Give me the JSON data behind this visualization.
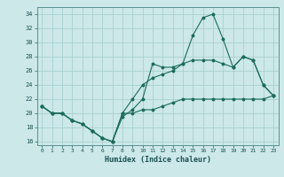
{
  "xlabel": "Humidex (Indice chaleur)",
  "ylabel": "",
  "bg_color": "#cce8e8",
  "grid_color": "#aad0d0",
  "line_color": "#1a6b5a",
  "xlim": [
    -0.5,
    23.5
  ],
  "ylim": [
    15.5,
    35
  ],
  "xticks": [
    0,
    1,
    2,
    3,
    4,
    5,
    6,
    7,
    8,
    9,
    10,
    11,
    12,
    13,
    14,
    15,
    16,
    17,
    18,
    19,
    20,
    21,
    22,
    23
  ],
  "yticks": [
    16,
    18,
    20,
    22,
    24,
    26,
    28,
    30,
    32,
    34
  ],
  "series1": [
    21,
    20,
    20,
    19,
    18.5,
    17.5,
    16.5,
    16,
    19.5,
    20.5,
    22,
    27,
    26.5,
    26.5,
    27,
    31,
    33.5,
    34,
    30.5,
    26.5,
    28,
    27.5,
    24,
    22.5
  ],
  "series2": [
    21,
    20,
    20,
    19,
    18.5,
    17.5,
    16.5,
    16,
    20,
    22,
    24,
    25,
    25.5,
    26,
    27,
    27.5,
    27.5,
    27.5,
    27,
    26.5,
    28,
    27.5,
    24,
    22.5
  ],
  "series3": [
    21,
    20,
    20,
    19,
    18.5,
    17.5,
    16.5,
    16,
    20,
    20,
    20.5,
    20.5,
    21,
    21.5,
    22,
    22,
    22,
    22,
    22,
    22,
    22,
    22,
    22,
    22.5
  ]
}
